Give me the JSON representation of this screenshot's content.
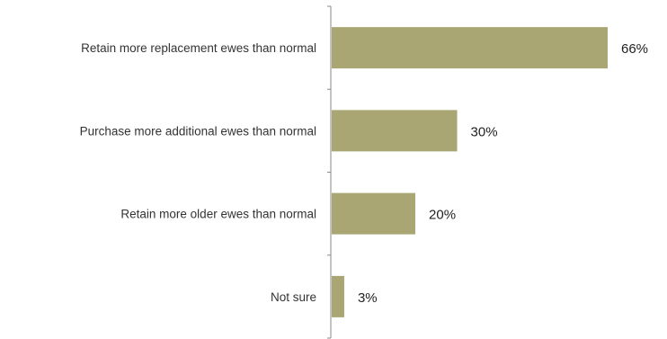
{
  "chart_data": {
    "type": "bar",
    "orientation": "horizontal",
    "categories": [
      "Retain more replacement ewes than normal",
      "Purchase more additional ewes than normal",
      "Retain more older ewes than normal",
      "Not sure"
    ],
    "values": [
      66,
      30,
      20,
      3
    ],
    "value_labels": [
      "66%",
      "30%",
      "20%",
      "3%"
    ],
    "unit": "%",
    "xlim": [
      0,
      66
    ],
    "grid": false,
    "legend": "none",
    "bar_color": "#a9a674",
    "title": "",
    "xlabel": "",
    "ylabel": ""
  }
}
